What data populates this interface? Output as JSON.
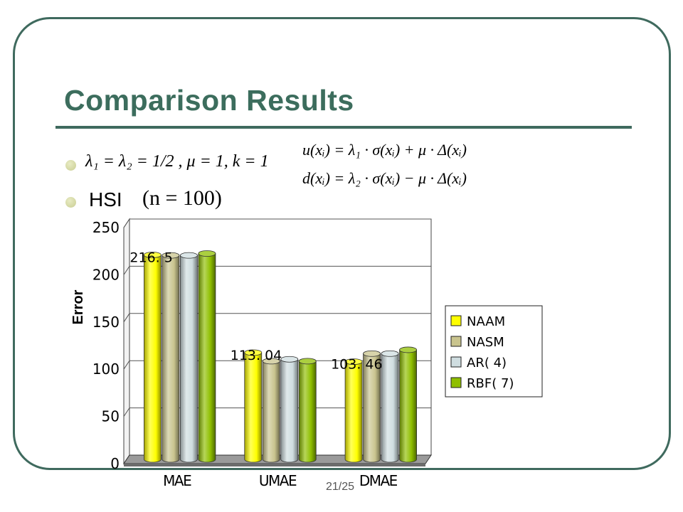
{
  "slide": {
    "title": "Comparison Results",
    "bullet1_formula": "λ₁ = λ₂ = 1/2 , μ = 1, k = 1",
    "bullet2_label": "HSI",
    "bullet2_formula": "(n = 100)",
    "formula_u": "u(xᵢ) = λ₁ · σ(xᵢ) + μ · Δ(xᵢ)",
    "formula_d": "d(xᵢ) = λ₂ · σ(xᵢ) − μ · Δ(xᵢ)",
    "page_number": "21/25"
  },
  "chart_data": {
    "type": "bar",
    "style": "3d-cylinder",
    "title": "",
    "xlabel": "",
    "ylabel": "Error",
    "ylim": [
      0,
      250
    ],
    "yticks": [
      0,
      50,
      100,
      150,
      200,
      250
    ],
    "grid": true,
    "legend": "right",
    "categories": [
      "MAE",
      "UMAE",
      "DMAE"
    ],
    "series": [
      {
        "name": "NAAM",
        "color": "#ffff00",
        "values": [
          216.5,
          113.04,
          103.46
        ]
      },
      {
        "name": "NASM",
        "color": "#c9c48e",
        "values": [
          216,
          104,
          112
        ]
      },
      {
        "name": "AR( 4)",
        "color": "#cfdde0",
        "values": [
          216,
          106,
          112
        ]
      },
      {
        "name": "RBF( 7)",
        "color": "#8fbf00",
        "values": [
          218,
          104,
          116
        ]
      }
    ],
    "data_labels": [
      {
        "category": "MAE",
        "text": "216. 5"
      },
      {
        "category": "UMAE",
        "text": "113. 04"
      },
      {
        "category": "DMAE",
        "text": "103. 46"
      }
    ]
  }
}
